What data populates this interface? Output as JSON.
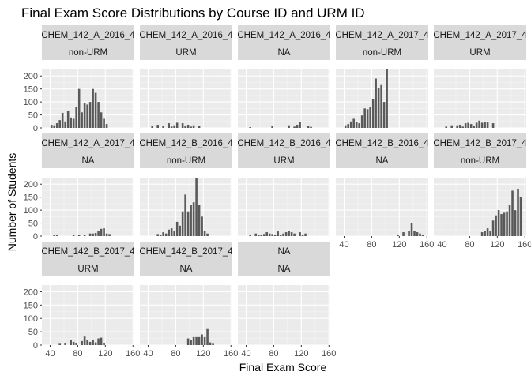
{
  "chart_data": {
    "type": "bar",
    "title": "Final Exam Score Distributions by Course ID and URM ID",
    "xlabel": "Final Exam Score",
    "ylabel": "Number of Students",
    "x_ticks": [
      "40",
      "80",
      "120",
      "160"
    ],
    "y_ticks": [
      "0",
      "50",
      "100",
      "150",
      "200"
    ],
    "xlim": [
      28,
      162
    ],
    "ylim": [
      0,
      225
    ],
    "bin_width": 4,
    "bin_starts": [
      32,
      36,
      40,
      44,
      48,
      52,
      56,
      60,
      64,
      68,
      72,
      76,
      80,
      84,
      88,
      92,
      96,
      100,
      104,
      108,
      112,
      116,
      120,
      124,
      128,
      132,
      136,
      140,
      144,
      148,
      152
    ],
    "facet_columns": 5,
    "colors": {
      "bar": "#595959",
      "panel": "#ebebeb",
      "grid_major": "#ffffff",
      "grid_minor": "#f5f5f5",
      "strip": "#d9d9d9"
    },
    "facets": [
      {
        "course": "CHEM_142_A_2016_4",
        "urm": "non-URM",
        "counts": [
          0,
          0,
          12,
          10,
          18,
          30,
          58,
          25,
          65,
          40,
          35,
          80,
          150,
          60,
          95,
          90,
          100,
          150,
          135,
          100,
          60,
          35,
          15,
          0,
          0,
          0,
          0,
          0,
          0,
          0,
          0
        ]
      },
      {
        "course": "CHEM_142_A_2016_4",
        "urm": "URM",
        "counts": [
          0,
          0,
          0,
          7,
          0,
          12,
          0,
          8,
          0,
          18,
          5,
          10,
          20,
          0,
          18,
          8,
          12,
          5,
          10,
          0,
          8,
          0,
          0,
          0,
          0,
          0,
          0,
          0,
          0,
          0,
          0
        ]
      },
      {
        "course": "CHEM_142_A_2016_4",
        "urm": "NA",
        "counts": [
          0,
          0,
          0,
          3,
          0,
          0,
          0,
          0,
          0,
          0,
          0,
          8,
          0,
          0,
          0,
          0,
          0,
          10,
          0,
          5,
          12,
          22,
          0,
          0,
          7,
          4,
          0,
          0,
          0,
          0,
          0
        ]
      },
      {
        "course": "CHEM_142_A_2017_4",
        "urm": "non-URM",
        "counts": [
          0,
          0,
          10,
          15,
          25,
          35,
          22,
          18,
          48,
          75,
          72,
          80,
          110,
          190,
          155,
          165,
          100,
          225,
          0,
          0,
          0,
          0,
          0,
          0,
          0,
          0,
          0,
          0,
          0,
          0,
          0
        ]
      },
      {
        "course": "CHEM_142_A_2017_4",
        "urm": "URM",
        "counts": [
          0,
          0,
          0,
          5,
          0,
          10,
          0,
          10,
          12,
          5,
          18,
          20,
          15,
          8,
          20,
          28,
          20,
          22,
          22,
          0,
          18,
          0,
          0,
          0,
          0,
          0,
          0,
          0,
          0,
          0,
          0
        ]
      },
      {
        "course": "CHEM_142_A_2017_4",
        "urm": "NA",
        "counts": [
          0,
          0,
          0,
          3,
          3,
          0,
          0,
          0,
          0,
          0,
          6,
          0,
          6,
          0,
          6,
          0,
          10,
          10,
          12,
          20,
          28,
          30,
          10,
          8,
          0,
          0,
          0,
          0,
          0,
          0,
          0
        ]
      },
      {
        "course": "CHEM_142_B_2016_4",
        "urm": "non-URM",
        "counts": [
          0,
          0,
          0,
          0,
          0,
          8,
          6,
          15,
          10,
          25,
          30,
          20,
          55,
          40,
          95,
          160,
          95,
          120,
          130,
          230,
          120,
          75,
          20,
          10,
          0,
          0,
          0,
          0,
          0,
          0,
          0
        ]
      },
      {
        "course": "CHEM_142_B_2016_4",
        "urm": "URM",
        "counts": [
          0,
          0,
          0,
          5,
          0,
          10,
          5,
          3,
          8,
          15,
          10,
          8,
          5,
          18,
          5,
          10,
          15,
          20,
          15,
          10,
          0,
          15,
          3,
          10,
          0,
          0,
          0,
          0,
          0,
          0,
          0
        ]
      },
      {
        "course": "CHEM_142_B_2016_4",
        "urm": "NA",
        "counts": [
          0,
          0,
          0,
          0,
          0,
          0,
          0,
          0,
          0,
          0,
          0,
          0,
          0,
          0,
          0,
          0,
          0,
          0,
          0,
          0,
          0,
          5,
          0,
          15,
          0,
          20,
          50,
          20,
          15,
          10,
          5
        ]
      },
      {
        "course": "CHEM_142_B_2017_4",
        "urm": "non-URM",
        "counts": [
          0,
          0,
          0,
          0,
          0,
          0,
          0,
          0,
          0,
          0,
          0,
          0,
          0,
          0,
          0,
          0,
          15,
          20,
          30,
          20,
          60,
          80,
          100,
          85,
          90,
          95,
          120,
          175,
          100,
          180,
          150
        ]
      },
      {
        "course": "CHEM_142_B_2017_4",
        "urm": "URM",
        "counts": [
          0,
          0,
          0,
          0,
          0,
          5,
          0,
          8,
          0,
          18,
          12,
          8,
          0,
          15,
          32,
          18,
          12,
          20,
          10,
          25,
          28,
          6,
          0,
          0,
          0,
          0,
          0,
          0,
          0,
          0,
          0
        ]
      },
      {
        "course": "CHEM_142_B_2017_4",
        "urm": "NA",
        "counts": [
          0,
          0,
          0,
          0,
          0,
          0,
          0,
          0,
          0,
          0,
          0,
          0,
          0,
          0,
          0,
          0,
          25,
          20,
          30,
          30,
          30,
          40,
          30,
          60,
          10,
          5,
          0,
          0,
          0,
          0,
          0
        ]
      },
      {
        "course": "NA",
        "urm": "NA",
        "counts": [
          0,
          0,
          0,
          0,
          0,
          0,
          0,
          0,
          0,
          0,
          0,
          0,
          0,
          0,
          0,
          0,
          0,
          0,
          0,
          0,
          0,
          0,
          0,
          0,
          0,
          0,
          0,
          0,
          0,
          0,
          0
        ]
      }
    ]
  }
}
